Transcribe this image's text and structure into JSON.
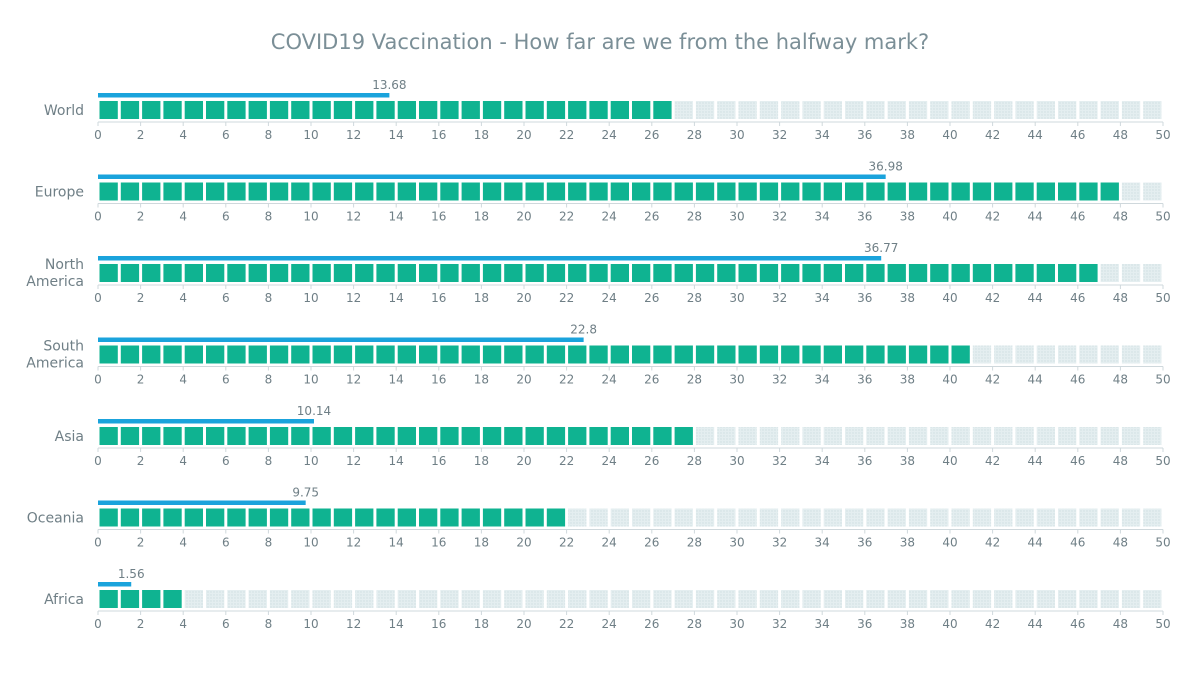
{
  "chart_data": {
    "type": "bar",
    "subtype": "bullet-with-unit-blocks",
    "title": "COVID19 Vaccination - How far are we from the halfway mark?",
    "xlim": [
      0,
      50
    ],
    "x_ticks": [
      0,
      2,
      4,
      6,
      8,
      10,
      12,
      14,
      16,
      18,
      20,
      22,
      24,
      26,
      28,
      30,
      32,
      34,
      36,
      38,
      40,
      42,
      44,
      46,
      48,
      50
    ],
    "categories": [
      "World",
      "Europe",
      "North America",
      "South America",
      "Asia",
      "Oceania",
      "Africa"
    ],
    "series": [
      {
        "values": [
          13.68,
          36.98,
          36.77,
          22.8,
          10.14,
          9.75,
          1.56
        ],
        "color": "#1aa3dc",
        "labels_shown": true
      },
      {
        "values": [
          27,
          48,
          47,
          41,
          28,
          22,
          4
        ],
        "color": "#0fb391"
      }
    ],
    "empty_block_color": "#e4eef0",
    "block_unit": 1,
    "grid": false,
    "legend": "none"
  }
}
